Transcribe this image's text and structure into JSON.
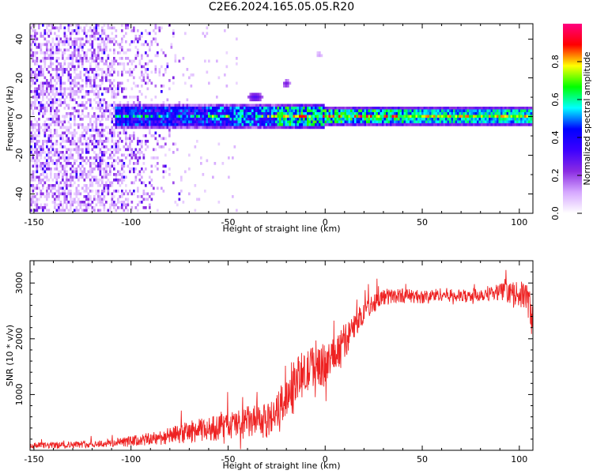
{
  "page_title": "C2E6.2024.165.05.05.R20",
  "chart_data": [
    {
      "type": "heatmap",
      "title": "C2E6.2024.165.05.05.R20",
      "xlabel": "Height of straight line (km)",
      "ylabel": "Frequency (Hz)",
      "xlim": [
        -152,
        107
      ],
      "ylim": [
        -50,
        48
      ],
      "x_ticks": [
        -150,
        -100,
        -50,
        0,
        50,
        100
      ],
      "x_tick_labels": [
        "-150",
        "-100",
        "-50",
        "0",
        "50",
        "100"
      ],
      "y_ticks": [
        -40,
        -20,
        0,
        20,
        40
      ],
      "y_tick_labels": [
        "-40",
        "-20",
        "0",
        "20",
        "40"
      ],
      "colorbar": {
        "label": "Normalized spectral amplitude",
        "range": [
          0,
          1
        ],
        "ticks": [
          0.0,
          0.2,
          0.4,
          0.6,
          0.8
        ],
        "tick_labels": [
          "0.0",
          "0.2",
          "0.4",
          "0.6",
          "0.8"
        ],
        "colors": [
          "#ffffff",
          "#d6a8ff",
          "#8a2be2",
          "#3c00ff",
          "#0000ff",
          "#00ffff",
          "#00ff00",
          "#ffff00",
          "#ff0000",
          "#ff0080"
        ]
      },
      "features": {
        "noise_region_x": [
          -152,
          -75
        ],
        "tone_start_x": -108,
        "tone_center_hz": 0,
        "tone_halfwidth_hz": 3,
        "blob_a": {
          "x": -36,
          "hz": 10
        },
        "blob_b": {
          "x": -20,
          "hz": 17
        },
        "blob_c": {
          "x": -3,
          "hz": 32
        }
      }
    },
    {
      "type": "line",
      "xlabel": "Height of straight line (km)",
      "ylabel": "SNR (10 * v/v)",
      "xlim": [
        -152,
        107
      ],
      "ylim": [
        0,
        3400
      ],
      "x_ticks": [
        -150,
        -100,
        -50,
        0,
        50,
        100
      ],
      "x_tick_labels": [
        "-150",
        "-100",
        "-50",
        "0",
        "50",
        "100"
      ],
      "y_ticks": [
        1000,
        2000,
        3000
      ],
      "y_tick_labels": [
        "1000",
        "2000",
        "3000"
      ],
      "color": "#ee2222",
      "series": [
        {
          "name": "SNR",
          "x": [
            -152,
            -140,
            -130,
            -120,
            -110,
            -100,
            -90,
            -80,
            -70,
            -60,
            -50,
            -40,
            -30,
            -25,
            -20,
            -15,
            -10,
            -5,
            0,
            5,
            10,
            15,
            20,
            25,
            30,
            40,
            50,
            60,
            70,
            80,
            90,
            100,
            104,
            107
          ],
          "y": [
            80,
            90,
            100,
            110,
            130,
            160,
            200,
            260,
            330,
            380,
            440,
            500,
            520,
            700,
            950,
            1300,
            1350,
            1600,
            1500,
            1750,
            1950,
            2200,
            2500,
            2650,
            2750,
            2780,
            2750,
            2800,
            2760,
            2800,
            2850,
            2800,
            2750,
            2300
          ],
          "noise_amplitude": [
            60,
            60,
            60,
            60,
            80,
            100,
            120,
            150,
            200,
            220,
            250,
            300,
            300,
            320,
            340,
            380,
            380,
            400,
            380,
            360,
            320,
            260,
            200,
            180,
            150,
            130,
            120,
            120,
            120,
            130,
            150,
            220,
            300,
            350
          ]
        }
      ]
    }
  ]
}
